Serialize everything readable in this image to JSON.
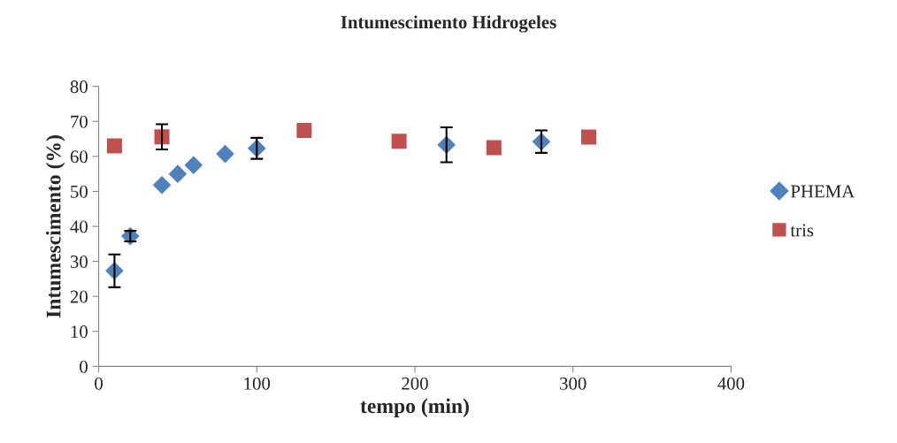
{
  "chart_data": {
    "type": "scatter",
    "title": "Intumescimento Hidrogeles",
    "xlabel": "tempo (min)",
    "ylabel": "Intumescimento (%)",
    "xlim": [
      0,
      400
    ],
    "xticks": [
      0,
      100,
      200,
      300,
      400
    ],
    "ylim": [
      0,
      80
    ],
    "yticks": [
      0,
      10,
      20,
      30,
      40,
      50,
      60,
      70,
      80
    ],
    "grid": false,
    "legend": "right",
    "series": [
      {
        "name": "PHEMA",
        "color": "#4f81bd",
        "marker": "diamond",
        "x": [
          10,
          20,
          40,
          50,
          60,
          80,
          100,
          220,
          280
        ],
        "values": [
          27.3,
          37.2,
          51.8,
          55,
          57.5,
          60.7,
          62.3,
          63.3,
          64.2
        ],
        "errors": [
          4.7,
          1.5,
          null,
          null,
          null,
          null,
          3,
          5,
          3.2
        ]
      },
      {
        "name": "tris",
        "color": "#c0504d",
        "marker": "square",
        "x": [
          10,
          40,
          130,
          190,
          250,
          310
        ],
        "values": [
          63,
          65.6,
          67.4,
          64.3,
          62.5,
          65.5
        ],
        "errors": [
          null,
          3.6,
          null,
          null,
          null,
          null
        ]
      }
    ]
  }
}
